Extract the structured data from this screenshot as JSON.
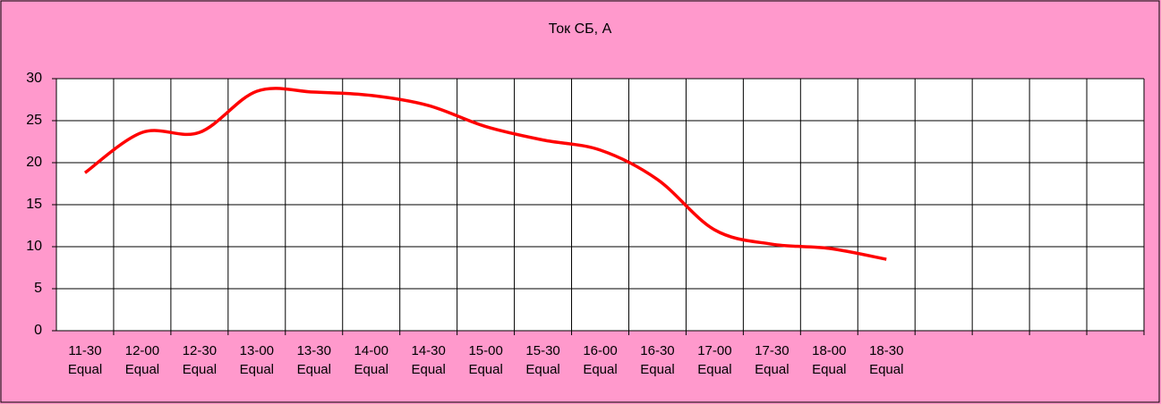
{
  "chart_data": {
    "type": "line",
    "title": "Ток СБ, А",
    "categories": [
      "11-30\nEqual",
      "12-00\nEqual",
      "12-30\nEqual",
      "13-00\nEqual",
      "13-30\nEqual",
      "14-00\nEqual",
      "14-30\nEqual",
      "15-00\nEqual",
      "15-30\nEqual",
      "16-00\nEqual",
      "16-30\nEqual",
      "17-00\nEqual",
      "17-30\nEqual",
      "18-00\nEqual",
      "18-30\nEqual",
      null,
      null,
      null,
      null
    ],
    "series": [
      {
        "name": "Ток СБ, А",
        "color": "#ff0000",
        "values": [
          18.8,
          23.6,
          23.6,
          28.5,
          28.4,
          28.0,
          26.8,
          24.3,
          22.7,
          21.5,
          18.0,
          12.0,
          10.3,
          9.8,
          8.5,
          null,
          null,
          null,
          null
        ]
      }
    ],
    "ylim": [
      0,
      30
    ],
    "yticks": [
      0,
      5,
      10,
      15,
      20,
      25,
      30
    ],
    "grid": true
  }
}
